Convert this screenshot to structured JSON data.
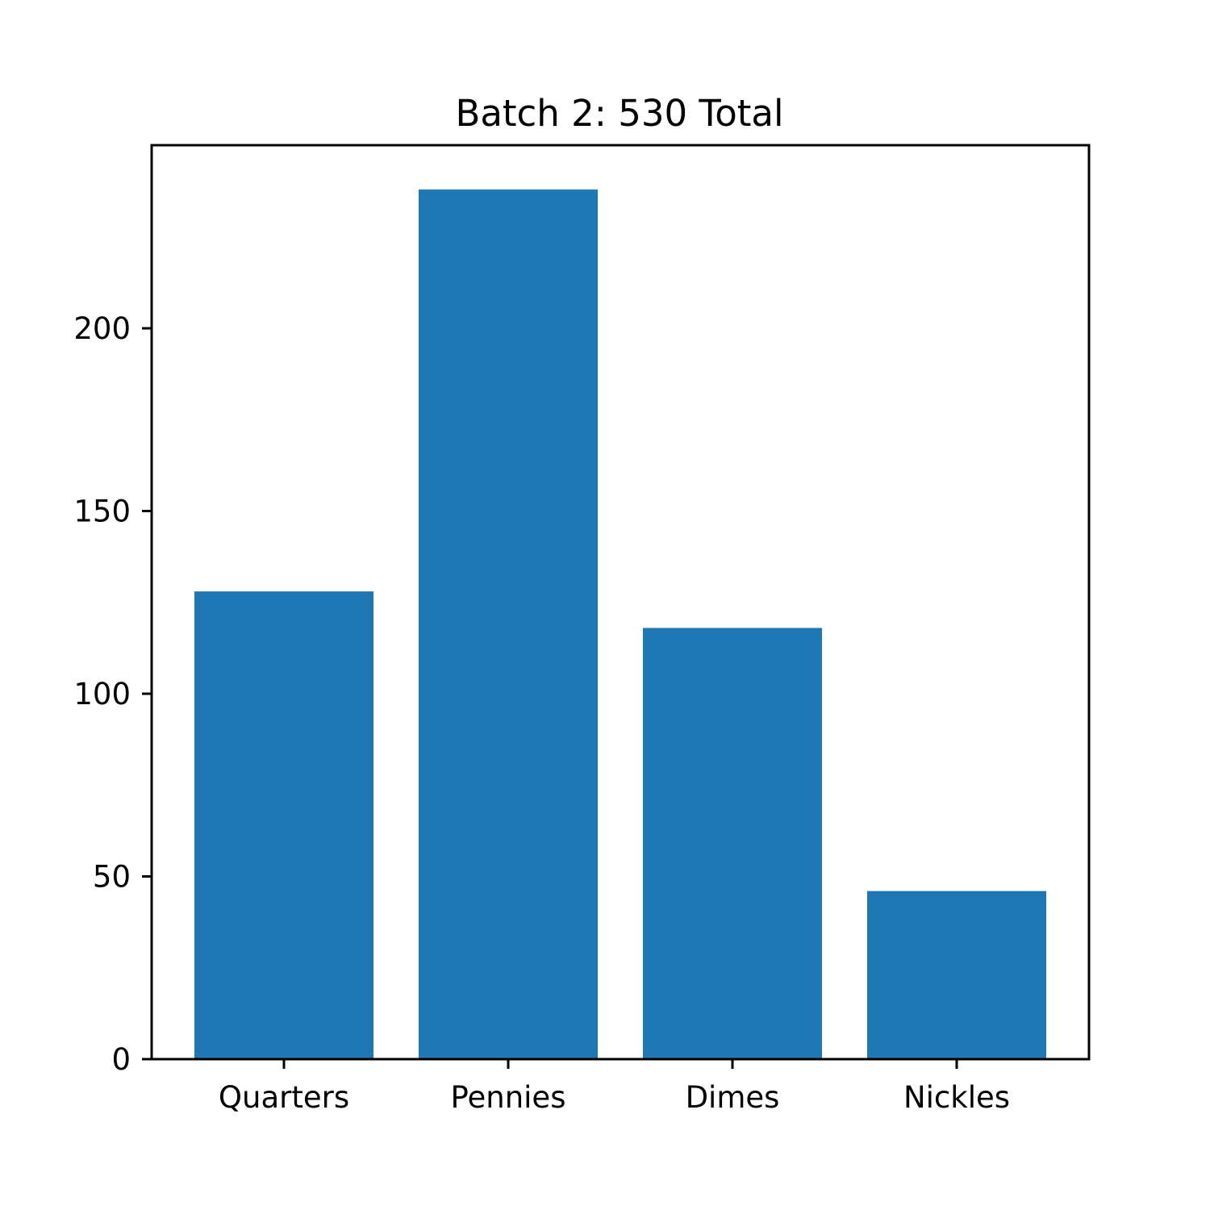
{
  "chart_data": {
    "type": "bar",
    "title": "Batch 2: 530 Total",
    "xlabel": "",
    "ylabel": "",
    "categories": [
      "Quarters",
      "Pennies",
      "Dimes",
      "Nickles"
    ],
    "values": [
      128,
      238,
      118,
      46
    ],
    "ylim": [
      0,
      250
    ],
    "yticks": [
      0,
      50,
      100,
      150,
      200
    ],
    "bar_color": "#1f77b4",
    "grid": false
  }
}
